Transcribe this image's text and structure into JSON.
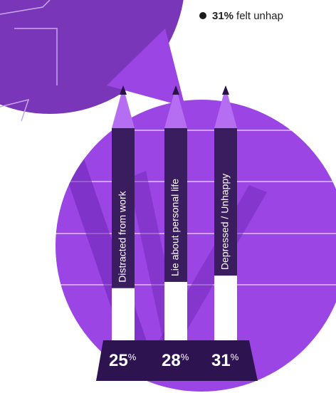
{
  "chart_data": {
    "type": "pencil-bar",
    "note_value": "31%",
    "note_text": "felt unhap",
    "categories": [
      "Distracted from work",
      "Lie about personal life",
      "Depressed / Unhappy"
    ],
    "values": [
      25,
      28,
      31
    ],
    "value_labels": [
      "25%",
      "28%",
      "31%"
    ],
    "ylim": [
      0,
      100
    ],
    "color": "#ffffff"
  }
}
